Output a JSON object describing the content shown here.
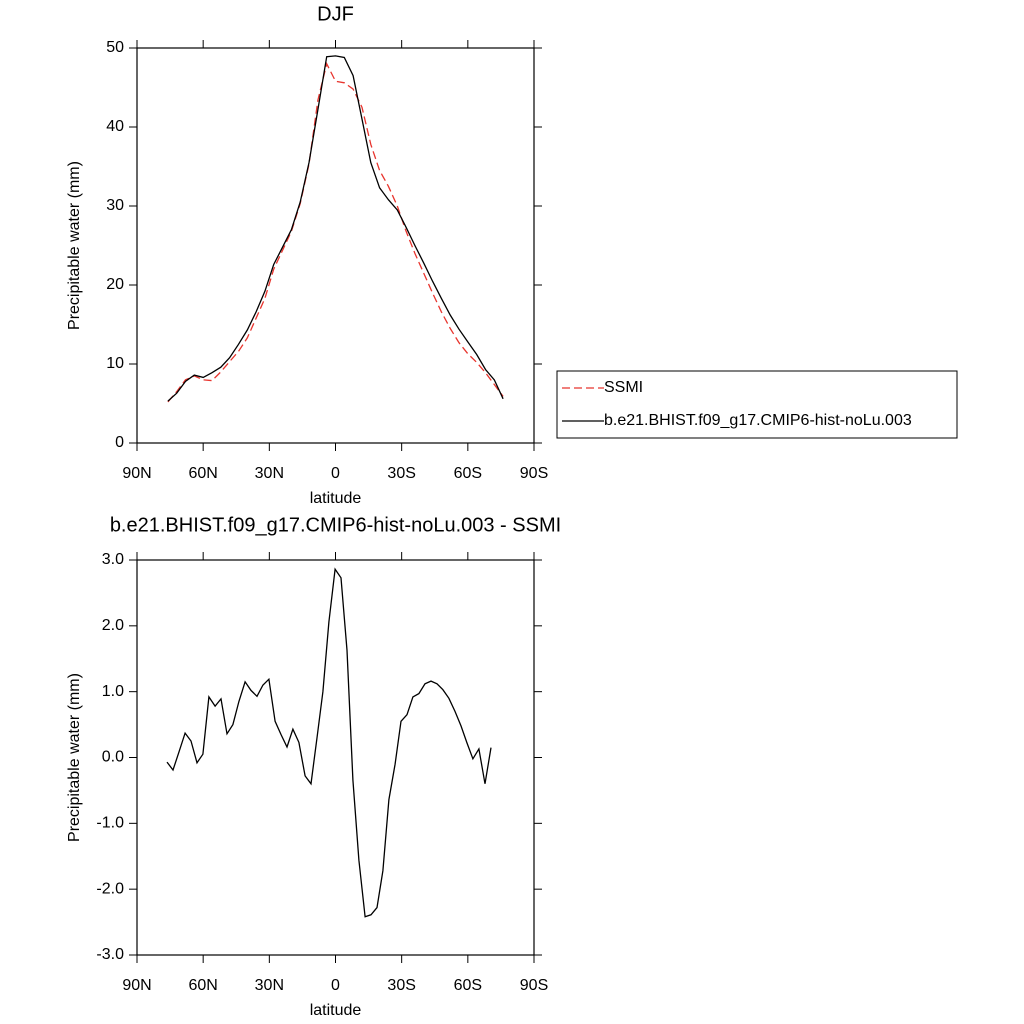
{
  "chart_data": [
    {
      "type": "line",
      "title": "DJF",
      "xlabel": "latitude",
      "ylabel": "Precipitable water (mm)",
      "x": [
        76,
        72,
        68,
        64,
        60,
        56,
        52,
        48,
        44,
        40,
        36,
        32,
        28,
        24,
        20,
        16,
        12,
        8,
        4,
        0,
        -4,
        -8,
        -12,
        -16,
        -20,
        -24,
        -28,
        -32,
        -36,
        -40,
        -44,
        -48,
        -52,
        -56,
        -60,
        -64,
        -68,
        -72,
        -76
      ],
      "series": [
        {
          "name": "SSMI",
          "color": "#e8352e",
          "dash": true,
          "values": [
            5.2,
            6.5,
            8.0,
            8.5,
            8.0,
            7.9,
            9.0,
            10.3,
            11.6,
            13.3,
            15.8,
            18.3,
            22.0,
            24.4,
            26.8,
            30.3,
            35.3,
            43.4,
            48.0,
            45.8,
            45.6,
            44.8,
            42.5,
            37.8,
            34.5,
            32.5,
            30.0,
            26.8,
            24.0,
            21.5,
            19.0,
            16.6,
            14.5,
            12.7,
            11.3,
            10.2,
            8.9,
            7.4,
            5.9
          ]
        },
        {
          "name": "b.e21.BHIST.f09_g17.CMIP6-hist-noLu.003",
          "color": "#000000",
          "dash": false,
          "values": [
            5.3,
            6.3,
            7.8,
            8.6,
            8.3,
            8.9,
            9.6,
            10.8,
            12.5,
            14.3,
            16.6,
            19.2,
            22.6,
            24.8,
            27.0,
            30.5,
            35.5,
            42.2,
            48.9,
            49.0,
            48.8,
            46.5,
            41.0,
            35.5,
            32.3,
            30.8,
            29.5,
            27.3,
            25.0,
            22.8,
            20.5,
            18.3,
            16.2,
            14.4,
            12.8,
            11.2,
            9.3,
            8.0,
            5.6
          ]
        }
      ],
      "xlim": [
        90,
        -90
      ],
      "xticks": [
        {
          "value": 90,
          "label": "90N"
        },
        {
          "value": 60,
          "label": "60N"
        },
        {
          "value": 30,
          "label": "30N"
        },
        0,
        {
          "value": -30,
          "label": "30S"
        },
        {
          "value": -60,
          "label": "60S"
        },
        {
          "value": -90,
          "label": "90S"
        }
      ],
      "ylim": [
        0,
        50
      ],
      "yticks": [
        0,
        10,
        20,
        30,
        40,
        50
      ],
      "legend": "right"
    },
    {
      "type": "line",
      "title": "b.e21.BHIST.f09_g17.CMIP6-hist-noLu.003 - SSMI",
      "xlabel": "latitude",
      "ylabel": "Precipitable water (mm)",
      "x": [
        76.4,
        73.7,
        71.0,
        68.2,
        65.5,
        62.8,
        60.1,
        57.4,
        54.6,
        51.9,
        49.2,
        46.5,
        43.8,
        41.0,
        38.3,
        35.6,
        32.9,
        30.2,
        27.4,
        24.7,
        22.0,
        19.3,
        16.6,
        13.8,
        11.1,
        8.4,
        5.7,
        3.0,
        0.2,
        -2.5,
        -5.2,
        -7.9,
        -10.6,
        -13.4,
        -16.1,
        -18.8,
        -21.5,
        -24.2,
        -27.0,
        -29.7,
        -32.4,
        -35.1,
        -37.8,
        -40.6,
        -43.3,
        -46.0,
        -48.7,
        -51.4,
        -54.2,
        -56.9,
        -59.6,
        -62.3,
        -65.0,
        -67.8,
        -70.5
      ],
      "values": [
        -0.07,
        -0.19,
        0.08,
        0.37,
        0.25,
        -0.08,
        0.05,
        0.92,
        0.78,
        0.89,
        0.36,
        0.5,
        0.85,
        1.15,
        1.02,
        0.93,
        1.1,
        1.19,
        0.55,
        0.35,
        0.16,
        0.43,
        0.23,
        -0.28,
        -0.4,
        0.3,
        1.0,
        2.06,
        2.86,
        2.73,
        1.63,
        -0.34,
        -1.56,
        -2.42,
        -2.39,
        -2.28,
        -1.72,
        -0.64,
        -0.1,
        0.55,
        0.65,
        0.92,
        0.97,
        1.12,
        1.16,
        1.12,
        1.03,
        0.9,
        0.7,
        0.48,
        0.22,
        -0.02,
        0.13,
        -0.4,
        0.15
      ],
      "color": "#000000",
      "xlim": [
        90,
        -90
      ],
      "xticks": [
        {
          "value": 90,
          "label": "90N"
        },
        {
          "value": 60,
          "label": "60N"
        },
        {
          "value": 30,
          "label": "30N"
        },
        0,
        {
          "value": -30,
          "label": "30S"
        },
        {
          "value": -60,
          "label": "60S"
        },
        {
          "value": -90,
          "label": "90S"
        }
      ],
      "ylim": [
        -3,
        3
      ],
      "yticks": [
        {
          "value": -3,
          "label": "-3.0"
        },
        {
          "value": -2,
          "label": "-2.0"
        },
        {
          "value": -1,
          "label": "-1.0"
        },
        {
          "value": 0,
          "label": "0.0"
        },
        {
          "value": 1,
          "label": "1.0"
        },
        {
          "value": 2,
          "label": "2.0"
        },
        {
          "value": 3,
          "label": "3.0"
        }
      ]
    }
  ]
}
